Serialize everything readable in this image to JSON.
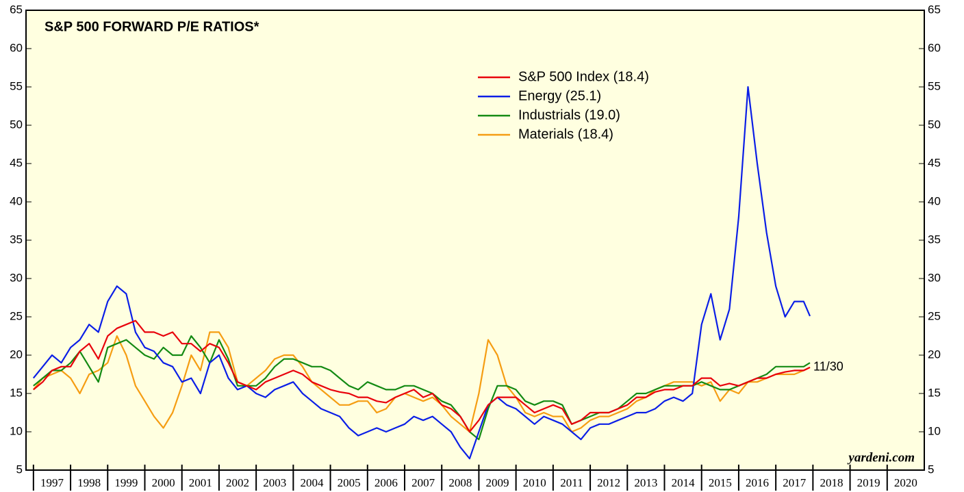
{
  "chart_data": {
    "type": "line",
    "title": "S&P 500 FORWARD P/E RATIOS*",
    "annotations": [
      "11/30",
      "yardeni.com"
    ],
    "xlim": [
      1996.8,
      2021
    ],
    "xticks": [
      1997,
      1998,
      1999,
      2000,
      2001,
      2002,
      2003,
      2004,
      2005,
      2006,
      2007,
      2008,
      2009,
      2010,
      2011,
      2012,
      2013,
      2014,
      2015,
      2016,
      2017,
      2018,
      2019,
      2020
    ],
    "ylim": [
      5,
      65
    ],
    "yticks": [
      5,
      10,
      15,
      20,
      25,
      30,
      35,
      40,
      45,
      50,
      55,
      60,
      65
    ],
    "y2lim": [
      5,
      65
    ],
    "y2ticks": [
      5,
      10,
      15,
      20,
      25,
      30,
      35,
      40,
      45,
      50,
      55,
      60,
      65
    ],
    "legend": "top",
    "x": [
      1997,
      1997.25,
      1997.5,
      1997.75,
      1998,
      1998.25,
      1998.5,
      1998.75,
      1999,
      1999.25,
      1999.5,
      1999.75,
      2000,
      2000.25,
      2000.5,
      2000.75,
      2001,
      2001.25,
      2001.5,
      2001.75,
      2002,
      2002.25,
      2002.5,
      2002.75,
      2003,
      2003.25,
      2003.5,
      2003.75,
      2004,
      2004.25,
      2004.5,
      2004.75,
      2005,
      2005.25,
      2005.5,
      2005.75,
      2006,
      2006.25,
      2006.5,
      2006.75,
      2007,
      2007.25,
      2007.5,
      2007.75,
      2008,
      2008.25,
      2008.5,
      2008.75,
      2009,
      2009.25,
      2009.5,
      2009.75,
      2010,
      2010.25,
      2010.5,
      2010.75,
      2011,
      2011.25,
      2011.5,
      2011.75,
      2012,
      2012.25,
      2012.5,
      2012.75,
      2013,
      2013.25,
      2013.5,
      2013.75,
      2014,
      2014.25,
      2014.5,
      2014.75,
      2015,
      2015.25,
      2015.5,
      2015.75,
      2016,
      2016.25,
      2016.5,
      2016.75,
      2017,
      2017.25,
      2017.5,
      2017.75,
      2017.92
    ],
    "series": [
      {
        "name": "S&P 500 Index (18.4)",
        "color": "#e8000b",
        "values": [
          15.5,
          16.5,
          18,
          18.5,
          18.5,
          20.5,
          21.5,
          19.5,
          22.5,
          23.5,
          24,
          24.5,
          23,
          23,
          22.5,
          23,
          21.5,
          21.5,
          20.5,
          21.5,
          21,
          19,
          16.5,
          16,
          15.5,
          16.5,
          17,
          17.5,
          18,
          17.5,
          16.5,
          16,
          15.5,
          15.2,
          15,
          14.5,
          14.5,
          14,
          13.8,
          14.5,
          15,
          15.5,
          14.5,
          15,
          13.5,
          13,
          12,
          10,
          11.5,
          13.5,
          14.5,
          14.5,
          14.5,
          13.5,
          12.5,
          13,
          13.5,
          13,
          11,
          11.5,
          12.5,
          12.5,
          12.5,
          13,
          13.5,
          14.5,
          14.5,
          15.2,
          15.5,
          15.5,
          16,
          16,
          17,
          17,
          16,
          16.3,
          16,
          16.5,
          17,
          17,
          17.5,
          17.8,
          18,
          18,
          18.4
        ]
      },
      {
        "name": "Energy (25.1)",
        "color": "#0a1ee6",
        "values": [
          17,
          18.5,
          20,
          19,
          21,
          22,
          24,
          23,
          27,
          29,
          28,
          23,
          21,
          20.5,
          19,
          18.5,
          16.5,
          17,
          15,
          19,
          20,
          17,
          15.5,
          16,
          15,
          14.5,
          15.5,
          16,
          16.5,
          15,
          14,
          13,
          12.5,
          12,
          10.5,
          9.5,
          10,
          10.5,
          10,
          10.5,
          11,
          12,
          11.5,
          12,
          11,
          10,
          8,
          6.5,
          10,
          13.5,
          14.5,
          13.5,
          13,
          12,
          11,
          12,
          11.5,
          11,
          10,
          9,
          10.5,
          11,
          11,
          11.5,
          12,
          12.5,
          12.5,
          13,
          14,
          14.5,
          14,
          15,
          24,
          28,
          22,
          26,
          38,
          55,
          45,
          36,
          29,
          25,
          27,
          27,
          25.1
        ]
      },
      {
        "name": "Industrials (19.0)",
        "color": "#138a13",
        "values": [
          16,
          17,
          18,
          18,
          19,
          20.5,
          18.5,
          16.5,
          21,
          21.5,
          22,
          21,
          20,
          19.5,
          21,
          20,
          20,
          22.5,
          21,
          19,
          22,
          19.5,
          16,
          16,
          16,
          17,
          18.5,
          19.5,
          19.5,
          19,
          18.5,
          18.5,
          18,
          17,
          16,
          15.5,
          16.5,
          16,
          15.5,
          15.5,
          16,
          16,
          15.5,
          15,
          14,
          13.5,
          12,
          10,
          9,
          13,
          16,
          16,
          15.5,
          14,
          13.5,
          14,
          14,
          13.5,
          11,
          11.5,
          12,
          12.5,
          12.5,
          13,
          14,
          15,
          15,
          15.5,
          16,
          16,
          16,
          16,
          16.5,
          16,
          15.5,
          15.5,
          16,
          16.5,
          17,
          17.5,
          18.5,
          18.5,
          18.5,
          18.5,
          19.0
        ]
      },
      {
        "name": "Materials (18.4)",
        "color": "#f59d12",
        "values": [
          15.5,
          17,
          17.5,
          18,
          17,
          15,
          17.5,
          18,
          19,
          22.5,
          20,
          16,
          14,
          12,
          10.5,
          12.5,
          16,
          20,
          18,
          23,
          23,
          21,
          16.5,
          16,
          17,
          18,
          19.5,
          20,
          20,
          18.5,
          16.5,
          15.5,
          14.5,
          13.5,
          13.5,
          14,
          14,
          12.5,
          13,
          14.5,
          15,
          14.5,
          14,
          14.5,
          13.5,
          12,
          11,
          10,
          15,
          22,
          20,
          16,
          14.5,
          12.5,
          12,
          12.5,
          12,
          12,
          10,
          10.5,
          11.5,
          12,
          12,
          12.5,
          13,
          14,
          14.5,
          15.5,
          16,
          16.5,
          16.5,
          16.5,
          16,
          16.5,
          14,
          15.5,
          15,
          16.5,
          16.5,
          17,
          17.5,
          17.5,
          17.5,
          18,
          18.4
        ]
      }
    ]
  }
}
